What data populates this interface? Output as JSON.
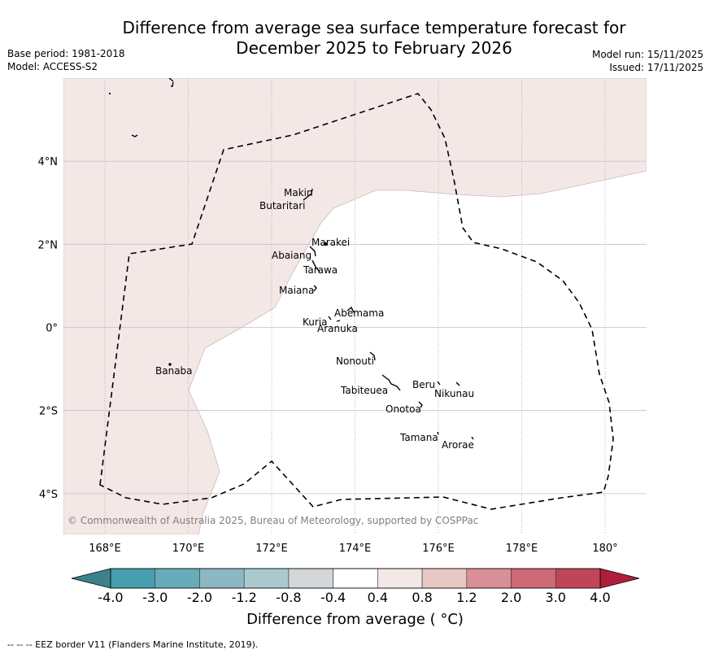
{
  "header": {
    "title_line1": "Difference from average sea surface temperature forecast for",
    "title_line2": "December 2025 to February 2026",
    "base_period": "Base period: 1981-2018",
    "model": "Model: ACCESS-S2",
    "model_run": "Model run: 15/11/2025",
    "issued": "Issued: 17/11/2025"
  },
  "map": {
    "extent": {
      "lon": [
        167,
        181
      ],
      "lat": [
        -5,
        6
      ]
    },
    "lon_ticks": [
      {
        "value": 168,
        "label": "168°E"
      },
      {
        "value": 170,
        "label": "170°E"
      },
      {
        "value": 172,
        "label": "172°E"
      },
      {
        "value": 174,
        "label": "174°E"
      },
      {
        "value": 176,
        "label": "176°E"
      },
      {
        "value": 178,
        "label": "178°E"
      },
      {
        "value": 180,
        "label": "180°"
      }
    ],
    "lat_ticks": [
      {
        "value": 4,
        "label": "4°N"
      },
      {
        "value": 2,
        "label": "2°N"
      },
      {
        "value": 0,
        "label": "0°"
      },
      {
        "value": -2,
        "label": "2°S"
      },
      {
        "value": -4,
        "label": "4°S"
      }
    ],
    "anomaly_region": {
      "category": "0.4 to 0.8",
      "color": "#f4e8e6",
      "note": "Warm anomaly covering the west and north of the map; remainder is -0.4 to 0.4 (white)"
    },
    "islands": [
      {
        "name": "Makin",
        "lon": 173.0,
        "lat": 3.3
      },
      {
        "name": "Butaritari",
        "lon": 172.8,
        "lat": 3.1
      },
      {
        "name": "Marakei",
        "lon": 173.3,
        "lat": 2.0
      },
      {
        "name": "Abaiang",
        "lon": 172.9,
        "lat": 1.85
      },
      {
        "name": "Tarawa",
        "lon": 173.0,
        "lat": 1.4
      },
      {
        "name": "Maiana",
        "lon": 173.0,
        "lat": 0.95
      },
      {
        "name": "Abemama",
        "lon": 173.85,
        "lat": 0.4
      },
      {
        "name": "Kuria",
        "lon": 173.4,
        "lat": 0.22
      },
      {
        "name": "Aranuka",
        "lon": 173.6,
        "lat": 0.15
      },
      {
        "name": "Banaba",
        "lon": 169.5,
        "lat": -0.85
      },
      {
        "name": "Nonouti",
        "lon": 174.4,
        "lat": -0.7
      },
      {
        "name": "Tabiteuea",
        "lon": 174.9,
        "lat": -1.3
      },
      {
        "name": "Beru",
        "lon": 176.0,
        "lat": -1.35
      },
      {
        "name": "Nikunau",
        "lon": 176.45,
        "lat": -1.35
      },
      {
        "name": "Onotoa",
        "lon": 175.55,
        "lat": -1.85
      },
      {
        "name": "Tamana",
        "lon": 175.98,
        "lat": -2.5
      },
      {
        "name": "Arorae",
        "lon": 176.8,
        "lat": -2.65
      }
    ],
    "copyright": "© Commonwealth of Australia 2025, Bureau of Meteorology, supported by COSPPac"
  },
  "colorbar": {
    "title": "Difference from average (°C)",
    "title_display": "Difference from average ($^\\circ$C)",
    "title_text": "Difference from average ( °C)",
    "tick_labels": [
      "-4.0",
      "-3.0",
      "-2.0",
      "-1.2",
      "-0.8",
      "-0.4",
      "0.4",
      "0.8",
      "1.2",
      "2.0",
      "3.0",
      "4.0"
    ],
    "under_color": "#3d818d",
    "over_color": "#b01e3c",
    "bin_colors": [
      "#469eae",
      "#69acb9",
      "#8bb8c3",
      "#aac9cd",
      "#d3d7d9",
      "#ffffff",
      "#f4e8e6",
      "#e8c8c4",
      "#d98f97",
      "#cc6a75",
      "#c04657"
    ]
  },
  "footnote": "--  --  -- EEZ border V11 (Flanders Marine Institute, 2019)."
}
